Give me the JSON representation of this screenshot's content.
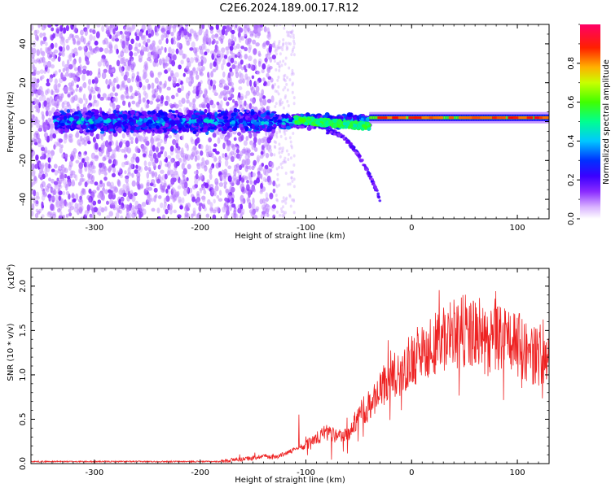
{
  "title": "C2E6.2024.189.00.17.R12",
  "chart_data": [
    {
      "type": "heatmap",
      "xlabel": "Height of straight line (km)",
      "ylabel": "Frequency (Hz)",
      "xlim": [
        -360,
        130
      ],
      "ylim": [
        -50,
        50
      ],
      "xticks": [
        -300,
        -200,
        -100,
        0,
        100
      ],
      "yticks": [
        -40,
        -20,
        0,
        20,
        40
      ],
      "colorbar": {
        "label": "Normalized spectral amplitude",
        "range": [
          0,
          1
        ],
        "ticks": [
          "0.0",
          "0.2",
          "0.4",
          "0.6",
          "0.8"
        ],
        "tick_values": [
          0,
          0.2,
          0.4,
          0.6,
          0.8
        ],
        "colormap_stops": [
          "#ffffff",
          "#b06cff",
          "#6a00ff",
          "#0000ff",
          "#00c8ff",
          "#00ff80",
          "#40ff00",
          "#ffff00",
          "#ff8000",
          "#ff0000",
          "#ff0066"
        ]
      },
      "features": {
        "noise_region_height_km": [
          -360,
          -130
        ],
        "main_line_frequency_hz": 0,
        "strong_segment_height_km": [
          -40,
          130
        ],
        "strong_segment_frequency_hz": 2,
        "diverging_branch": {
          "height_km": [
            -80,
            -30
          ],
          "frequency_hz": [
            -5,
            -40
          ]
        }
      }
    },
    {
      "type": "line",
      "xlabel": "Height of straight line (km)",
      "ylabel": "SNR (10 * v/v)",
      "y_multiplier": "(x10",
      "y_multiplier_exp": "4",
      "y_multiplier_close": ")",
      "xlim": [
        -360,
        130
      ],
      "ylim": [
        0,
        2.2
      ],
      "xticks": [
        -300,
        -200,
        -100,
        0,
        100
      ],
      "yticks": [
        "0.0",
        "0.5",
        "1.0",
        "1.5",
        "2.0"
      ],
      "ytick_values": [
        0,
        0.5,
        1.0,
        1.5,
        2.0
      ],
      "series": [
        {
          "color": "#ee2222",
          "envelope_x": [
            -360,
            -180,
            -150,
            -140,
            -130,
            -120,
            -110,
            -100,
            -90,
            -80,
            -70,
            -60,
            -50,
            -40,
            -30,
            -20,
            -10,
            0,
            10,
            20,
            30,
            40,
            50,
            60,
            70,
            80,
            90,
            100,
            110,
            120,
            130
          ],
          "envelope_y": [
            0.02,
            0.02,
            0.05,
            0.08,
            0.06,
            0.1,
            0.15,
            0.2,
            0.3,
            0.35,
            0.3,
            0.35,
            0.55,
            0.65,
            0.8,
            1.0,
            1.05,
            1.15,
            1.3,
            1.35,
            1.4,
            1.45,
            1.5,
            1.45,
            1.35,
            1.4,
            1.45,
            1.35,
            1.25,
            1.2,
            1.25
          ]
        }
      ]
    }
  ]
}
